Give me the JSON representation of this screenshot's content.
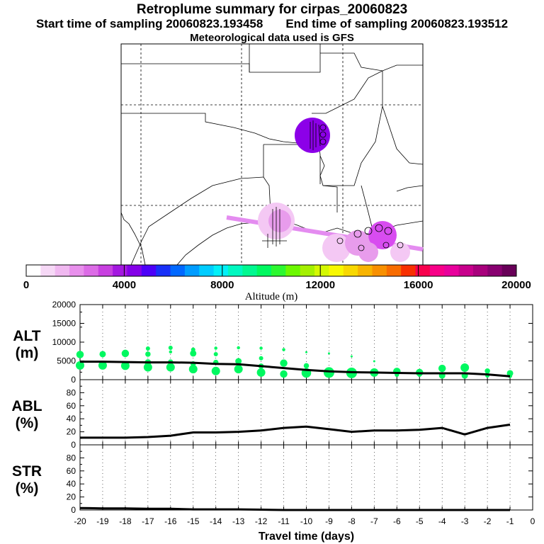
{
  "header": {
    "title": "Retroplume summary for cirpas_20060823",
    "start_label": "Start time of sampling 20060823.193458",
    "end_label": "End time of sampling 20060823.193512",
    "met_label": "Meteorological data used is GFS"
  },
  "colorbar": {
    "ticks": [
      "0",
      "4000",
      "8000",
      "12000",
      "16000",
      "20000"
    ],
    "label": "Altitude (m)",
    "colors": [
      "#ffffff",
      "#f6d8f6",
      "#f0b8f0",
      "#e890ec",
      "#dc6ce6",
      "#c840e0",
      "#a418e0",
      "#8400e8",
      "#4c00f8",
      "#1830f8",
      "#0068ff",
      "#009cff",
      "#00ccff",
      "#00f0f8",
      "#00f8c0",
      "#00f890",
      "#00f860",
      "#2cf830",
      "#6cf800",
      "#a4f000",
      "#d4f800",
      "#f8f800",
      "#f8d800",
      "#f8b400",
      "#f89000",
      "#f86c00",
      "#f83000",
      "#f8004c",
      "#f80088",
      "#e8009c",
      "#c8008c",
      "#a8007c",
      "#880070",
      "#680058"
    ]
  },
  "map": {
    "plume_colors": {
      "upper_source": "#8c00e8",
      "pink_light": "#f4c8f4",
      "pink_mid": "#e89cec",
      "magenta": "#d84cf0",
      "track": "#e48cf0"
    }
  },
  "chart_data": [
    {
      "type": "scatter",
      "title": "ALT (m)",
      "ylabel_top": "ALT",
      "ylabel_bottom": "(m)",
      "ylim": [
        0,
        20000
      ],
      "yticks": [
        "0",
        "5000",
        "10000",
        "15000",
        "20000"
      ],
      "xlim": [
        -20,
        0
      ],
      "mean_line": {
        "x": [
          -20,
          -19,
          -18,
          -17,
          -16,
          -15,
          -14,
          -13,
          -12,
          -11,
          -10,
          -9,
          -8,
          -7,
          -6,
          -5,
          -4,
          -3,
          -2,
          -1
        ],
        "y": [
          4800,
          4800,
          4700,
          4600,
          4600,
          4500,
          4200,
          4100,
          3600,
          3100,
          2600,
          2200,
          2000,
          1900,
          1800,
          1700,
          1700,
          1700,
          1400,
          900
        ]
      },
      "points": [
        {
          "x": -20,
          "y": 6700,
          "s": 7
        },
        {
          "x": -20,
          "y": 3800,
          "s": 8
        },
        {
          "x": -19,
          "y": 6800,
          "s": 6
        },
        {
          "x": -19,
          "y": 3800,
          "s": 8
        },
        {
          "x": -18,
          "y": 7000,
          "s": 7
        },
        {
          "x": -18,
          "y": 3700,
          "s": 8
        },
        {
          "x": -17,
          "y": 8300,
          "s": 4
        },
        {
          "x": -17,
          "y": 6800,
          "s": 5
        },
        {
          "x": -17,
          "y": 4600,
          "s": 6
        },
        {
          "x": -17,
          "y": 3300,
          "s": 8
        },
        {
          "x": -16,
          "y": 8500,
          "s": 4
        },
        {
          "x": -16,
          "y": 7400,
          "s": 3
        },
        {
          "x": -16,
          "y": 4700,
          "s": 5
        },
        {
          "x": -16,
          "y": 3300,
          "s": 8
        },
        {
          "x": -15,
          "y": 8000,
          "s": 4
        },
        {
          "x": -15,
          "y": 7000,
          "s": 6
        },
        {
          "x": -15,
          "y": 4200,
          "s": 5
        },
        {
          "x": -15,
          "y": 2800,
          "s": 8
        },
        {
          "x": -14,
          "y": 8400,
          "s": 3
        },
        {
          "x": -14,
          "y": 6800,
          "s": 4
        },
        {
          "x": -14,
          "y": 4600,
          "s": 5
        },
        {
          "x": -14,
          "y": 2300,
          "s": 8
        },
        {
          "x": -13,
          "y": 8500,
          "s": 3
        },
        {
          "x": -13,
          "y": 4900,
          "s": 6
        },
        {
          "x": -13,
          "y": 2800,
          "s": 8
        },
        {
          "x": -12,
          "y": 8400,
          "s": 3
        },
        {
          "x": -12,
          "y": 5700,
          "s": 4
        },
        {
          "x": -12,
          "y": 3600,
          "s": 5
        },
        {
          "x": -12,
          "y": 1900,
          "s": 8
        },
        {
          "x": -11,
          "y": 8000,
          "s": 3
        },
        {
          "x": -11,
          "y": 4400,
          "s": 7
        },
        {
          "x": -11,
          "y": 1500,
          "s": 7
        },
        {
          "x": -10,
          "y": 7300,
          "s": 2
        },
        {
          "x": -10,
          "y": 3700,
          "s": 5
        },
        {
          "x": -10,
          "y": 1800,
          "s": 9
        },
        {
          "x": -9,
          "y": 7000,
          "s": 2
        },
        {
          "x": -9,
          "y": 1900,
          "s": 10
        },
        {
          "x": -8,
          "y": 6200,
          "s": 2
        },
        {
          "x": -8,
          "y": 1800,
          "s": 10
        },
        {
          "x": -7,
          "y": 4900,
          "s": 2
        },
        {
          "x": -7,
          "y": 1900,
          "s": 8
        },
        {
          "x": -6,
          "y": 2200,
          "s": 7
        },
        {
          "x": -6,
          "y": 1300,
          "s": 4
        },
        {
          "x": -5,
          "y": 1900,
          "s": 7
        },
        {
          "x": -5,
          "y": 1300,
          "s": 4
        },
        {
          "x": -4,
          "y": 3000,
          "s": 7
        },
        {
          "x": -4,
          "y": 1100,
          "s": 6
        },
        {
          "x": -3,
          "y": 3200,
          "s": 8
        },
        {
          "x": -3,
          "y": 1100,
          "s": 6
        },
        {
          "x": -2,
          "y": 2300,
          "s": 5
        },
        {
          "x": -2,
          "y": 1100,
          "s": 4
        },
        {
          "x": -1,
          "y": 1700,
          "s": 6
        },
        {
          "x": -1,
          "y": 1000,
          "s": 4
        }
      ],
      "point_color": "#00f860",
      "line_color": "#000000"
    },
    {
      "type": "line",
      "title": "ABL (%)",
      "ylabel_top": "ABL",
      "ylabel_bottom": "(%)",
      "ylim": [
        0,
        100
      ],
      "yticks": [
        "0",
        "20",
        "40",
        "60",
        "80"
      ],
      "xlim": [
        -20,
        0
      ],
      "x": [
        -20,
        -19,
        -18,
        -17,
        -16,
        -15,
        -14,
        -13,
        -12,
        -11,
        -10,
        -9,
        -8,
        -7,
        -6,
        -5,
        -4,
        -3,
        -2,
        -1
      ],
      "y": [
        11,
        11,
        11,
        12,
        14,
        19,
        19,
        20,
        22,
        26,
        28,
        24,
        20,
        22,
        22,
        23,
        26,
        16,
        26,
        31
      ],
      "line_color": "#000000"
    },
    {
      "type": "line",
      "title": "STR (%)",
      "ylabel_top": "STR",
      "ylabel_bottom": "(%)",
      "ylim": [
        0,
        100
      ],
      "yticks": [
        "0",
        "20",
        "40",
        "60",
        "80"
      ],
      "xlim": [
        -20,
        0
      ],
      "x": [
        -20,
        -19,
        -18,
        -17,
        -16,
        -15,
        -14,
        -13,
        -12,
        -11,
        -10,
        -9,
        -8,
        -7,
        -6,
        -5,
        -4,
        -3,
        -2,
        -1
      ],
      "y": [
        3,
        2.5,
        2.5,
        2,
        2,
        1,
        1,
        1,
        0.5,
        0,
        0,
        0,
        0,
        0,
        0,
        0,
        0,
        0,
        0,
        0
      ],
      "line_color": "#000000",
      "xlabel": "Travel time (days)",
      "xticks": [
        "-20",
        "-19",
        "-18",
        "-17",
        "-16",
        "-15",
        "-14",
        "-13",
        "-12",
        "-11",
        "-10",
        "-9",
        "-8",
        "-7",
        "-6",
        "-5",
        "-4",
        "-3",
        "-2",
        "-1",
        "0"
      ]
    }
  ]
}
